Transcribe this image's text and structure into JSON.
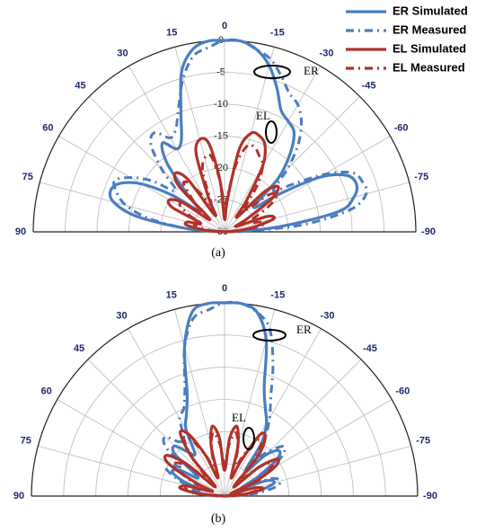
{
  "chart_data": [
    {
      "type": "polar",
      "caption": "(a)",
      "x": [
        -90,
        -85,
        -80,
        -75,
        -70,
        -65,
        -60,
        -55,
        -50,
        -45,
        -40,
        -35,
        -30,
        -25,
        -20,
        -15,
        -10,
        -5,
        0,
        5,
        10,
        15,
        20,
        25,
        30,
        35,
        40,
        45,
        50,
        55,
        60,
        65,
        70,
        75,
        80,
        85,
        90
      ],
      "xticks": [
        90,
        75,
        60,
        45,
        30,
        15,
        0,
        -15,
        -30,
        -45,
        -60,
        -75,
        -90
      ],
      "rlim": [
        -30,
        0
      ],
      "rticks": [
        0,
        -5,
        -10,
        -15,
        -20,
        -25,
        -30
      ],
      "rtick_labels": true,
      "legend": true,
      "annotations": [
        "ER",
        "EL"
      ],
      "series": [
        {
          "name": "ER Simulated",
          "color": "#4a7dc0",
          "dash": false,
          "values": [
            -30,
            -22,
            -12,
            -9,
            -8,
            -9,
            -13,
            -20,
            -24,
            -18,
            -14,
            -11,
            -10,
            -9,
            -6,
            -3,
            -1,
            0,
            0,
            0,
            -1,
            -4,
            -10,
            -14,
            -15,
            -13,
            -16,
            -22,
            -25,
            -20,
            -15,
            -12,
            -11,
            -12,
            -16,
            -24,
            -30
          ]
        },
        {
          "name": "ER Measured",
          "color": "#4a7dc0",
          "dash": true,
          "values": [
            -28,
            -18,
            -10,
            -7,
            -7,
            -8,
            -12,
            -17,
            -20,
            -16,
            -12,
            -9,
            -7,
            -6,
            -4,
            -2,
            -1,
            0,
            0,
            -1,
            -2,
            -5,
            -9,
            -12,
            -13,
            -11,
            -12,
            -16,
            -20,
            -16,
            -13,
            -11,
            -12,
            -14,
            -18,
            -24,
            -29
          ]
        },
        {
          "name": "EL Simulated",
          "color": "#b0322a",
          "dash": false,
          "values": [
            -30,
            -28,
            -25,
            -22,
            -23,
            -28,
            -26,
            -21,
            -19,
            -21,
            -27,
            -24,
            -18,
            -15,
            -14,
            -14,
            -17,
            -25,
            -28,
            -22,
            -16,
            -15,
            -17,
            -24,
            -27,
            -20,
            -18,
            -20,
            -27,
            -22,
            -20,
            -21,
            -26,
            -24,
            -24,
            -27,
            -30
          ]
        },
        {
          "name": "EL Measured",
          "color": "#b0322a",
          "dash": true,
          "values": [
            -29,
            -27,
            -24,
            -24,
            -26,
            -25,
            -22,
            -20,
            -21,
            -25,
            -25,
            -21,
            -18,
            -17,
            -16,
            -16,
            -19,
            -24,
            -26,
            -22,
            -18,
            -18,
            -20,
            -25,
            -24,
            -21,
            -20,
            -23,
            -25,
            -22,
            -22,
            -24,
            -26,
            -25,
            -26,
            -28,
            -30
          ]
        }
      ]
    },
    {
      "type": "polar",
      "caption": "(b)",
      "x": [
        -90,
        -85,
        -80,
        -75,
        -70,
        -65,
        -60,
        -55,
        -50,
        -45,
        -40,
        -35,
        -30,
        -25,
        -20,
        -15,
        -10,
        -5,
        0,
        5,
        10,
        15,
        20,
        25,
        30,
        35,
        40,
        45,
        50,
        55,
        60,
        65,
        70,
        75,
        80,
        85,
        90
      ],
      "xticks": [
        90,
        75,
        60,
        45,
        30,
        15,
        0,
        -15,
        -30,
        -45,
        -60,
        -75,
        -90
      ],
      "rlim": [
        -30,
        0
      ],
      "rticks": [
        0,
        -5,
        -10,
        -15,
        -20,
        -25,
        -30
      ],
      "rtick_labels": false,
      "legend": false,
      "annotations": [
        "ER",
        "EL"
      ],
      "series": [
        {
          "color": "#4a7dc0",
          "dash": false,
          "values": [
            -30,
            -27,
            -24,
            -22,
            -23,
            -27,
            -24,
            -20,
            -19,
            -21,
            -25,
            -20,
            -17,
            -15,
            -12,
            -5,
            -1,
            0,
            0,
            0,
            -1,
            -6,
            -13,
            -16,
            -18,
            -22,
            -21,
            -19,
            -20,
            -25,
            -22,
            -21,
            -23,
            -26,
            -25,
            -27,
            -30
          ]
        },
        {
          "color": "#4a7dc0",
          "dash": true,
          "values": [
            -29,
            -25,
            -22,
            -21,
            -22,
            -25,
            -22,
            -19,
            -18,
            -20,
            -22,
            -19,
            -16,
            -13,
            -8,
            -3,
            -1,
            0,
            0,
            -1,
            -2,
            -6,
            -12,
            -15,
            -16,
            -19,
            -19,
            -17,
            -18,
            -22,
            -20,
            -20,
            -22,
            -24,
            -24,
            -26,
            -29
          ]
        },
        {
          "color": "#b0322a",
          "dash": false,
          "values": [
            -30,
            -27,
            -24,
            -25,
            -29,
            -25,
            -21,
            -20,
            -23,
            -28,
            -22,
            -19,
            -19,
            -24,
            -27,
            -22,
            -19,
            -21,
            -26,
            -21,
            -19,
            -22,
            -27,
            -23,
            -19,
            -18,
            -22,
            -28,
            -22,
            -19,
            -20,
            -25,
            -28,
            -24,
            -23,
            -26,
            -30
          ]
        },
        {
          "color": "#b0322a",
          "dash": true,
          "values": [
            -29,
            -27,
            -25,
            -25,
            -27,
            -24,
            -22,
            -21,
            -23,
            -26,
            -23,
            -20,
            -20,
            -23,
            -25,
            -22,
            -20,
            -22,
            -25,
            -22,
            -20,
            -22,
            -25,
            -23,
            -20,
            -19,
            -22,
            -26,
            -23,
            -21,
            -21,
            -24,
            -26,
            -24,
            -24,
            -26,
            -29
          ]
        }
      ]
    }
  ]
}
